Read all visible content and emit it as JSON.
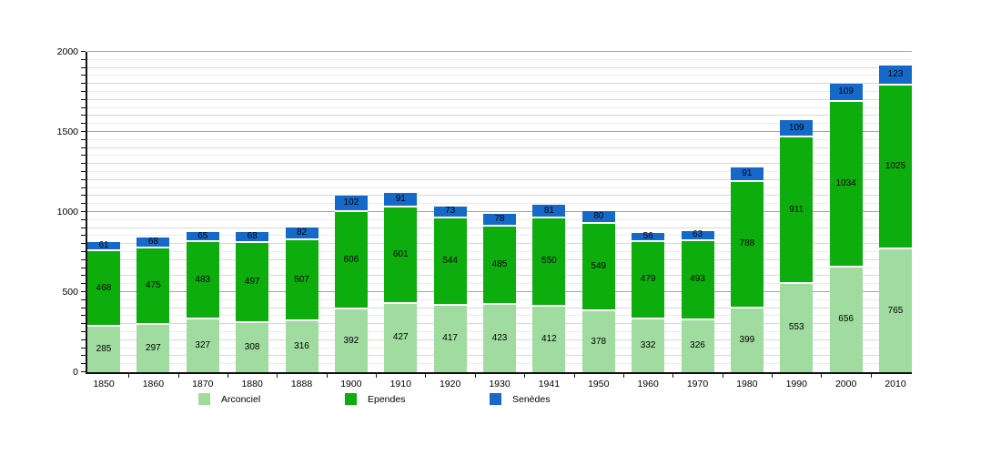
{
  "chart_data": {
    "type": "bar",
    "stacked": true,
    "title": "",
    "categories": [
      "1850",
      "1860",
      "1870",
      "1880",
      "1888",
      "1900",
      "1910",
      "1920",
      "1930",
      "1941",
      "1950",
      "1960",
      "1970",
      "1980",
      "1990",
      "2000",
      "2010"
    ],
    "series": [
      {
        "name": "Arconciel",
        "color": "#a0dba0",
        "values": [
          285,
          297,
          327,
          308,
          316,
          392,
          427,
          417,
          423,
          412,
          378,
          332,
          326,
          399,
          553,
          656,
          765
        ]
      },
      {
        "name": "Ependes",
        "color": "#0cad0c",
        "values": [
          468,
          475,
          483,
          497,
          507,
          606,
          601,
          544,
          485,
          550,
          549,
          479,
          493,
          788,
          911,
          1034,
          1025
        ]
      },
      {
        "name": "Senèdes",
        "color": "#1569c8",
        "values": [
          61,
          68,
          65,
          68,
          82,
          102,
          91,
          73,
          78,
          81,
          80,
          56,
          63,
          91,
          109,
          109,
          123
        ]
      }
    ],
    "xlabel": "",
    "ylabel": "",
    "ylim": [
      0,
      2000
    ],
    "yticks": [
      0,
      500,
      1000,
      1500,
      2000
    ],
    "minor_tick_step": 50,
    "grid": "horizontal only",
    "legend_position": "bottom",
    "value_labels": "centered inside each segment",
    "axis_color": "#111111",
    "background_color": "#ffffff"
  }
}
